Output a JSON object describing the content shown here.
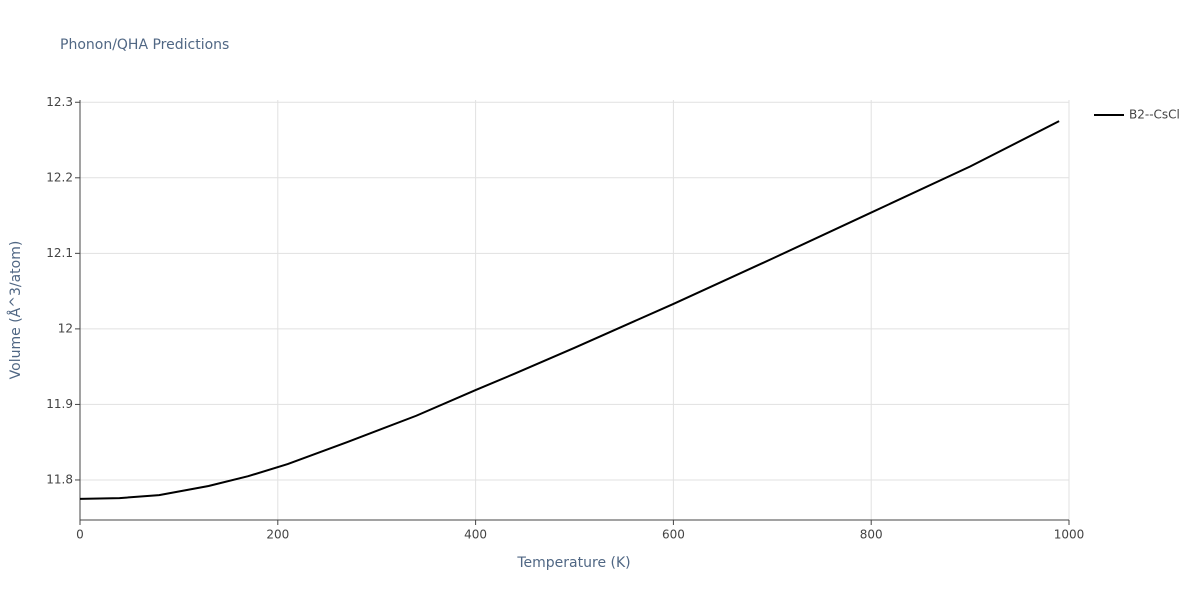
{
  "chart_data": {
    "type": "line",
    "title": "Phonon/QHA Predictions",
    "x_label": "Temperature (K)",
    "y_label": "Volume (Å^3/atom)",
    "x": [
      0,
      40,
      80,
      130,
      170,
      210,
      270,
      340,
      400,
      440,
      500,
      600,
      700,
      800,
      900,
      990
    ],
    "series": [
      {
        "name": "B2--CsCl",
        "color": "#000000",
        "values": [
          11.775,
          11.776,
          11.78,
          11.792,
          11.805,
          11.821,
          11.85,
          11.885,
          11.919,
          11.941,
          11.975,
          12.033,
          12.093,
          12.154,
          12.215,
          12.275
        ]
      }
    ],
    "xlim": [
      0,
      1000
    ],
    "xticks": [
      0,
      200,
      400,
      600,
      800,
      1000
    ],
    "ylim": [
      11.747,
      12.303
    ],
    "yticks": [
      11.8,
      11.9,
      12,
      12.1,
      12.2,
      12.3
    ],
    "grid": true,
    "legend": "right"
  }
}
